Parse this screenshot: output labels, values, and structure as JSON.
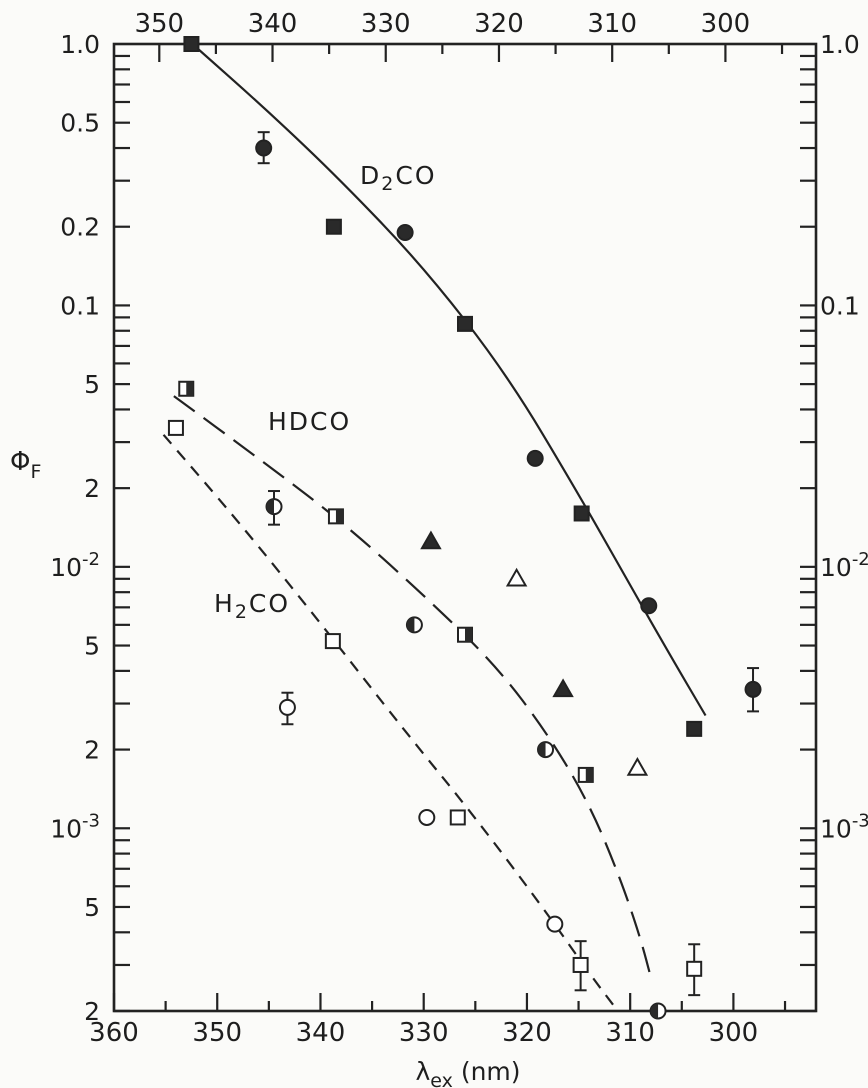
{
  "chart_data": {
    "type": "scatter",
    "title": "",
    "xlabel_main": "λ",
    "xlabel_sub": "ex",
    "xlabel_unit": "(nm)",
    "ylabel_main": "Φ",
    "ylabel_sub": "F",
    "x_scale": "linear, reversed (high to low)",
    "y_scale": "log",
    "xlim_bottom": [
      360,
      292
    ],
    "xlim_top": [
      354,
      292
    ],
    "ylim": [
      0.0002,
      1.0
    ],
    "grid": false,
    "bottom_x_ticks": [
      360,
      350,
      340,
      330,
      320,
      310,
      300
    ],
    "top_x_ticks": [
      350,
      340,
      330,
      320,
      310,
      300
    ],
    "left_y_ticks": [
      {
        "value": 1.0,
        "label": "1.0"
      },
      {
        "value": 0.5,
        "label": "0.5"
      },
      {
        "value": 0.2,
        "label": "0.2"
      },
      {
        "value": 0.1,
        "label": "0.1"
      },
      {
        "value": 0.05,
        "label": "5"
      },
      {
        "value": 0.02,
        "label": "2"
      },
      {
        "value": 0.01,
        "label": "10",
        "sup": "-2"
      },
      {
        "value": 0.005,
        "label": "5"
      },
      {
        "value": 0.002,
        "label": "2"
      },
      {
        "value": 0.001,
        "label": "10",
        "sup": "-3"
      },
      {
        "value": 0.0005,
        "label": "5"
      },
      {
        "value": 0.0002,
        "label": "2"
      }
    ],
    "right_y_ticks": [
      {
        "value": 1.0,
        "label": "1.0"
      },
      {
        "value": 0.1,
        "label": "0.1"
      },
      {
        "value": 0.01,
        "label": "10",
        "sup": "-2"
      },
      {
        "value": 0.001,
        "label": "10",
        "sup": "-3"
      }
    ],
    "series_labels": [
      {
        "main": "D",
        "sub": "2",
        "rest": "CO"
      },
      {
        "main": "HDCO",
        "sub": "",
        "rest": ""
      },
      {
        "main": "H",
        "sub": "2",
        "rest": "CO"
      }
    ],
    "series": [
      {
        "label_index": 0,
        "fit_style": "solid",
        "points": [
          {
            "x": 352.5,
            "y": 1.0,
            "m": "sq-filled"
          },
          {
            "x": 345.5,
            "y": 0.4,
            "m": "circ-filled",
            "err": [
              0.35,
              0.46
            ]
          },
          {
            "x": 338.7,
            "y": 0.2,
            "m": "sq-filled"
          },
          {
            "x": 331.8,
            "y": 0.19,
            "m": "circ-filled"
          },
          {
            "x": 326.0,
            "y": 0.085,
            "m": "sq-filled"
          },
          {
            "x": 319.2,
            "y": 0.026,
            "m": "circ-filled"
          },
          {
            "x": 314.7,
            "y": 0.016,
            "m": "sq-filled"
          },
          {
            "x": 308.2,
            "y": 0.0071,
            "m": "circ-filled"
          },
          {
            "x": 303.8,
            "y": 0.0024,
            "m": "sq-filled"
          },
          {
            "x": 298.1,
            "y": 0.0034,
            "m": "circ-filled",
            "err": [
              0.0028,
              0.0041
            ]
          }
        ],
        "fit": [
          [
            352.4,
            1.0
          ],
          [
            345,
            0.55
          ],
          [
            338,
            0.3
          ],
          [
            330,
            0.14
          ],
          [
            322,
            0.055
          ],
          [
            315,
            0.019
          ],
          [
            310,
            0.0085
          ],
          [
            306,
            0.0045
          ],
          [
            302.7,
            0.0027
          ]
        ]
      },
      {
        "label_index": 1,
        "fit_style": "long-dash",
        "points": [
          {
            "x": 353.0,
            "y": 0.048,
            "m": "sq-half"
          },
          {
            "x": 344.5,
            "y": 0.017,
            "m": "circ-half",
            "err": [
              0.0145,
              0.0195
            ]
          },
          {
            "x": 338.5,
            "y": 0.0156,
            "m": "sq-half"
          },
          {
            "x": 330.9,
            "y": 0.006,
            "m": "circ-half"
          },
          {
            "x": 326.0,
            "y": 0.0055,
            "m": "sq-half"
          },
          {
            "x": 318.2,
            "y": 0.002,
            "m": "circ-half"
          },
          {
            "x": 314.3,
            "y": 0.0016,
            "m": "sq-half"
          },
          {
            "x": 307.3,
            "y": 0.0002,
            "m": "circ-half"
          }
        ],
        "fit": [
          [
            354.2,
            0.045
          ],
          [
            346,
            0.026
          ],
          [
            338,
            0.015
          ],
          [
            330,
            0.0078
          ],
          [
            323,
            0.0042
          ],
          [
            318,
            0.0023
          ],
          [
            314,
            0.00125
          ],
          [
            311,
            0.00065
          ],
          [
            309,
            0.00038
          ],
          [
            307.9,
            0.00026
          ]
        ]
      },
      {
        "label_index": 2,
        "fit_style": "short-dash",
        "points": [
          {
            "x": 354.0,
            "y": 0.034,
            "m": "sq-open"
          },
          {
            "x": 338.8,
            "y": 0.0052,
            "m": "sq-open"
          },
          {
            "x": 343.2,
            "y": 0.0029,
            "m": "circ-open",
            "err": [
              0.0025,
              0.0033
            ]
          },
          {
            "x": 329.7,
            "y": 0.0011,
            "m": "circ-open"
          },
          {
            "x": 326.7,
            "y": 0.0011,
            "m": "sq-open"
          },
          {
            "x": 317.3,
            "y": 0.00043,
            "m": "circ-open"
          },
          {
            "x": 314.8,
            "y": 0.0003,
            "m": "sq-open",
            "err": [
              0.00024,
              0.00037
            ]
          },
          {
            "x": 303.8,
            "y": 0.00029,
            "m": "sq-open",
            "err": [
              0.00023,
              0.00036
            ]
          }
        ],
        "fit": [
          [
            355.2,
            0.032
          ],
          [
            348,
            0.015
          ],
          [
            340,
            0.0061
          ],
          [
            332,
            0.0024
          ],
          [
            325,
            0.0011
          ],
          [
            318,
            0.00047
          ],
          [
            314,
            0.00028
          ],
          [
            311.2,
            0.0002
          ]
        ]
      },
      {
        "label_index": -1,
        "fit_style": "none",
        "points": [
          {
            "x": 329.3,
            "y": 0.0125,
            "m": "tri-filled"
          },
          {
            "x": 321.0,
            "y": 0.009,
            "m": "tri-open"
          },
          {
            "x": 316.5,
            "y": 0.0034,
            "m": "tri-filled"
          },
          {
            "x": 309.3,
            "y": 0.0017,
            "m": "tri-open"
          }
        ]
      }
    ]
  }
}
